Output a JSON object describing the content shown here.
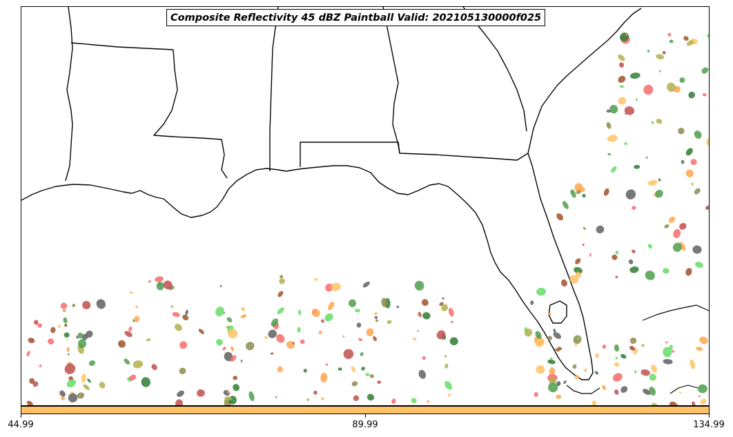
{
  "title": "Composite Reflectivity 45 dBZ Paintball Valid: 202105130000f025",
  "colorbar": {
    "color": "#ffc266",
    "ticks": [
      "44.99",
      "89.99",
      "134.99"
    ]
  },
  "member_colors": [
    "#c0504d",
    "#f76b6b",
    "#ffa64d",
    "#ffc266",
    "#66dd66",
    "#4d9e4d",
    "#b0b04d",
    "#8c8c4d",
    "#606060",
    "#2e7d32",
    "#a0522d"
  ],
  "map": {
    "region": "Southeastern United States / Gulf of Mexico",
    "coastline_color": "#000000",
    "background": "#ffffff"
  }
}
